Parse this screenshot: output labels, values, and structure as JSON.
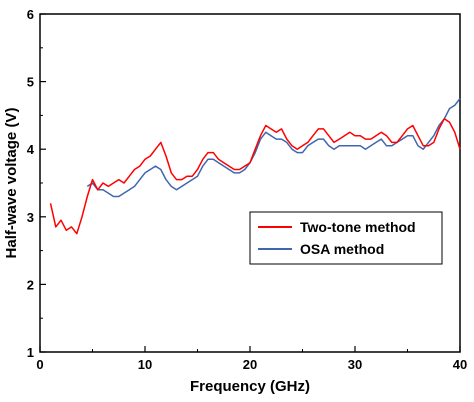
{
  "chart_data": {
    "type": "line",
    "title": "",
    "xlabel": "Frequency (GHz)",
    "ylabel": "Half-wave voltage (V)",
    "xlim": [
      0,
      40
    ],
    "ylim": [
      1,
      6
    ],
    "xticks": [
      0,
      10,
      20,
      30,
      40
    ],
    "yticks": [
      1,
      2,
      3,
      4,
      5,
      6
    ],
    "grid": false,
    "legend_position": "center-right",
    "series": [
      {
        "name": "Two-tone method",
        "color": "#ff0000",
        "x": [
          1,
          1.5,
          2,
          2.5,
          3,
          3.5,
          4,
          4.5,
          5,
          5.5,
          6,
          6.5,
          7,
          7.5,
          8,
          8.5,
          9,
          9.5,
          10,
          10.5,
          11,
          11.5,
          12,
          12.5,
          13,
          13.5,
          14,
          14.5,
          15,
          15.5,
          16,
          16.5,
          17,
          17.5,
          18,
          18.5,
          19,
          19.5,
          20,
          20.5,
          21,
          21.5,
          22,
          22.5,
          23,
          23.5,
          24,
          24.5,
          25,
          25.5,
          26,
          26.5,
          27,
          27.5,
          28,
          28.5,
          29,
          29.5,
          30,
          30.5,
          31,
          31.5,
          32,
          32.5,
          33,
          33.5,
          34,
          34.5,
          35,
          35.5,
          36,
          36.5,
          37,
          37.5,
          38,
          38.5,
          39,
          39.5,
          40
        ],
        "values": [
          3.2,
          2.85,
          2.95,
          2.8,
          2.85,
          2.75,
          3.0,
          3.3,
          3.55,
          3.4,
          3.5,
          3.45,
          3.5,
          3.55,
          3.5,
          3.6,
          3.7,
          3.75,
          3.85,
          3.9,
          4.0,
          4.1,
          3.9,
          3.65,
          3.55,
          3.55,
          3.6,
          3.6,
          3.7,
          3.85,
          3.95,
          3.95,
          3.85,
          3.8,
          3.75,
          3.7,
          3.7,
          3.75,
          3.8,
          4.0,
          4.2,
          4.35,
          4.3,
          4.25,
          4.3,
          4.15,
          4.05,
          4.0,
          4.05,
          4.1,
          4.2,
          4.3,
          4.3,
          4.2,
          4.1,
          4.15,
          4.2,
          4.25,
          4.2,
          4.2,
          4.15,
          4.15,
          4.2,
          4.25,
          4.2,
          4.1,
          4.1,
          4.2,
          4.3,
          4.35,
          4.2,
          4.05,
          4.05,
          4.1,
          4.3,
          4.45,
          4.4,
          4.25,
          4.0
        ]
      },
      {
        "name": "OSA method",
        "color": "#3f66b0",
        "x": [
          4.5,
          5,
          5.5,
          6,
          6.5,
          7,
          7.5,
          8,
          8.5,
          9,
          9.5,
          10,
          10.5,
          11,
          11.5,
          12,
          12.5,
          13,
          13.5,
          14,
          14.5,
          15,
          15.5,
          16,
          16.5,
          17,
          17.5,
          18,
          18.5,
          19,
          19.5,
          20,
          20.5,
          21,
          21.5,
          22,
          22.5,
          23,
          23.5,
          24,
          24.5,
          25,
          25.5,
          26,
          26.5,
          27,
          27.5,
          28,
          28.5,
          29,
          29.5,
          30,
          30.5,
          31,
          31.5,
          32,
          32.5,
          33,
          33.5,
          34,
          34.5,
          35,
          35.5,
          36,
          36.5,
          37,
          37.5,
          38,
          38.5,
          39,
          39.5,
          40
        ],
        "values": [
          3.45,
          3.5,
          3.4,
          3.4,
          3.35,
          3.3,
          3.3,
          3.35,
          3.4,
          3.45,
          3.55,
          3.65,
          3.7,
          3.75,
          3.7,
          3.55,
          3.45,
          3.4,
          3.45,
          3.5,
          3.55,
          3.6,
          3.75,
          3.85,
          3.85,
          3.8,
          3.75,
          3.7,
          3.65,
          3.65,
          3.7,
          3.8,
          3.95,
          4.15,
          4.25,
          4.2,
          4.15,
          4.15,
          4.1,
          4.0,
          3.95,
          3.95,
          4.05,
          4.1,
          4.15,
          4.15,
          4.05,
          4.0,
          4.05,
          4.05,
          4.05,
          4.05,
          4.05,
          4.0,
          4.05,
          4.1,
          4.15,
          4.05,
          4.05,
          4.1,
          4.15,
          4.2,
          4.2,
          4.05,
          4.0,
          4.1,
          4.2,
          4.35,
          4.45,
          4.6,
          4.65,
          4.75
        ]
      }
    ]
  }
}
